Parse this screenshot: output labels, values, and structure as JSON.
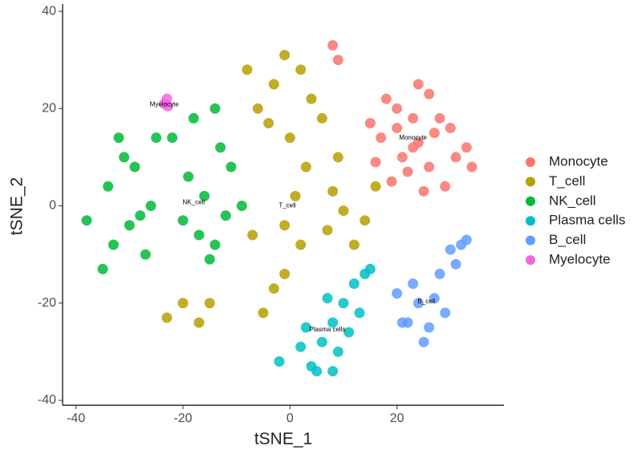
{
  "chart_data": {
    "type": "scatter",
    "x_label": "tSNE_1",
    "y_label": "tSNE_2",
    "xlim": [
      -42.5,
      40
    ],
    "ylim": [
      -41,
      41.5
    ],
    "xticks": [
      -40,
      -20,
      0,
      20
    ],
    "yticks": [
      -40,
      -20,
      0,
      20,
      40
    ],
    "grid": false,
    "legend": "right",
    "series": [
      {
        "name": "Monocyte",
        "color": "#F8766D",
        "x": [
          24,
          20,
          28,
          17,
          31,
          22,
          26,
          15,
          33,
          19,
          29,
          24,
          21,
          27,
          18,
          25,
          30,
          23,
          16,
          34,
          8,
          9,
          20,
          26,
          23
        ],
        "y": [
          13,
          20,
          18,
          14,
          10,
          7,
          23,
          17,
          12,
          5,
          4,
          25,
          10,
          15,
          22,
          3,
          16,
          18,
          9,
          8,
          33,
          30,
          16,
          8,
          12
        ]
      },
      {
        "name": "T_cell",
        "color": "#B79F00",
        "x": [
          -3,
          -6,
          2,
          -1,
          4,
          -8,
          6,
          -4,
          0,
          3,
          1,
          -1,
          2,
          10,
          8,
          14,
          12,
          7,
          -20,
          -17,
          -23,
          -15,
          -3,
          -5,
          -1,
          16,
          -7,
          9
        ],
        "y": [
          25,
          20,
          28,
          31,
          22,
          28,
          18,
          17,
          14,
          8,
          2,
          -4,
          -8,
          -1,
          3,
          -3,
          -8,
          -5,
          -20,
          -24,
          -23,
          -20,
          -17,
          -22,
          -14,
          4,
          -6,
          10
        ]
      },
      {
        "name": "NK_cell",
        "color": "#00BA38",
        "x": [
          -32,
          -29,
          -34,
          -26,
          -30,
          -33,
          -27,
          -31,
          -28,
          -16,
          -12,
          -19,
          -9,
          -14,
          -17,
          -11,
          -20,
          -15,
          -13,
          -25,
          -18,
          -22,
          -38,
          -35,
          -14
        ],
        "y": [
          14,
          8,
          4,
          0,
          -4,
          -8,
          -10,
          10,
          -2,
          2,
          -2,
          6,
          0,
          -8,
          -6,
          8,
          -3,
          -11,
          12,
          14,
          18,
          14,
          -3,
          -13,
          20
        ]
      },
      {
        "name": "Plasma cells",
        "color": "#00BFC4",
        "x": [
          10,
          12,
          8,
          6,
          14,
          4,
          9,
          11,
          7,
          3,
          13,
          15,
          5,
          2,
          -2,
          8
        ],
        "y": [
          -20,
          -16,
          -24,
          -28,
          -14,
          -33,
          -30,
          -26,
          -19,
          -25,
          -22,
          -13,
          -34,
          -29,
          -32,
          -34
        ]
      },
      {
        "name": "B_cell",
        "color": "#619CFF",
        "x": [
          24,
          28,
          30,
          26,
          22,
          32,
          20,
          27,
          25,
          31,
          29,
          23,
          21,
          33
        ],
        "y": [
          -20,
          -14,
          -9,
          -25,
          -24,
          -8,
          -18,
          -19,
          -28,
          -12,
          -22,
          -16,
          -24,
          -7
        ]
      },
      {
        "name": "Myelocyte",
        "color": "#F564E3",
        "x": [
          -23,
          -23.5,
          -22.8
        ],
        "y": [
          22,
          21,
          20.5
        ]
      }
    ],
    "annotations": [
      {
        "text": "Monocyte",
        "x": 23,
        "y": 14
      },
      {
        "text": "T_cell",
        "x": -0.5,
        "y": 0
      },
      {
        "text": "NK_cell",
        "x": -18,
        "y": 0.7
      },
      {
        "text": "Plasma cells",
        "x": 7,
        "y": -25.5
      },
      {
        "text": "B_cell",
        "x": 25.5,
        "y": -19.7
      },
      {
        "text": "Myelocyte",
        "x": -23.5,
        "y": 20.8
      }
    ]
  }
}
